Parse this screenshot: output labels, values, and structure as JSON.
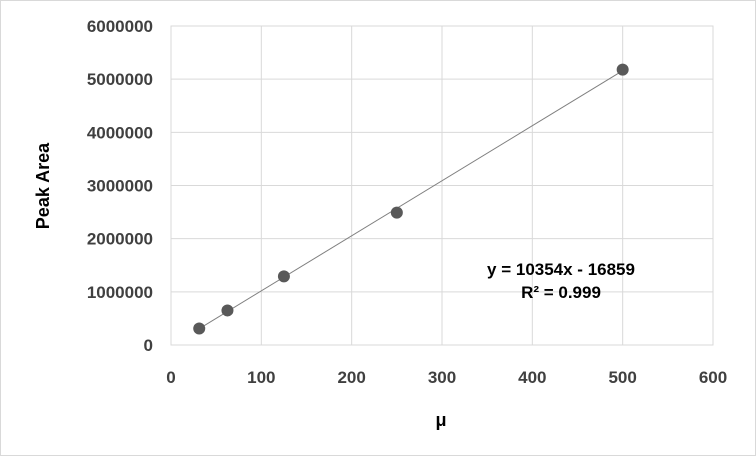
{
  "chart_data": {
    "type": "scatter",
    "title": "",
    "xlabel": "μ",
    "ylabel": "Peak Area",
    "xlim": [
      0,
      600
    ],
    "ylim": [
      0,
      6000000
    ],
    "x_ticks": [
      "0",
      "100",
      "200",
      "300",
      "400",
      "500",
      "600"
    ],
    "y_ticks": [
      "0",
      "1000000",
      "2000000",
      "3000000",
      "4000000",
      "5000000",
      "6000000"
    ],
    "grid": true,
    "legend": "none",
    "series": [
      {
        "x": [
          31.25,
          62.5,
          125,
          250,
          500
        ],
        "y": [
          310000,
          650000,
          1290000,
          2490000,
          5180000
        ],
        "color": "#595959"
      }
    ],
    "trendline": {
      "type": "linear",
      "slope": 10354,
      "intercept": -16859,
      "x_range": [
        31.25,
        500
      ],
      "color": "#7f7f7f",
      "equation": "y = 10354x - 16859",
      "r2_label": "R² = 0.999"
    }
  }
}
